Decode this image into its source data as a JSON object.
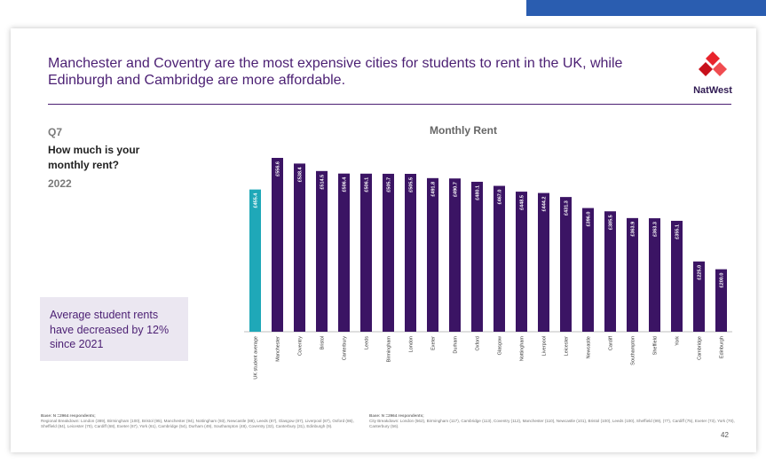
{
  "header": {
    "headline": "Manchester and Coventry are the most expensive cities for students to rent in the UK, while Edinburgh and Cambridge are more affordable.",
    "brand": "NatWest"
  },
  "question": {
    "number": "Q7",
    "text": "How much is your monthly rent?",
    "year": "2022"
  },
  "callout": "Average student rents have decreased by 12% since 2021",
  "footnotes": {
    "left_heading": "Base: N =2964 respondents;",
    "left_body": "Regional Breakdown: London (389), Birmingham (100), Bristol (95), Manchester (94), Nottingham (93), Newcastle (88), Leeds (87), Glasgow (87), Liverpool (87), Oxford (86), Sheffield (84), Leicester (70), Cardiff (68), Exeter (67), York (61), Cambridge (54), Durham (49), Southampton (48), Coventry (32), Canterbury (31), Edinburgh (9).",
    "right_heading": "Base: N =2964 respondents;",
    "right_body": "City Breakdown: London (562), Birmingham (117), Cambridge (113), Coventry (112), Manchester (110), Newcastle (101), Bristol (100), Leeds (100), Sheffield (99), (77), Cardiff (75), Exeter (73), York (70), Canterbury (56)."
  },
  "page_number": "42",
  "colors": {
    "highlight": "#1fa8b8",
    "bar": "#3b1464",
    "headline": "#4b1f73",
    "brand": "#e8242c"
  },
  "chart_data": {
    "type": "bar",
    "title": "Monthly Rent",
    "categories": [
      "UK student average",
      "Manchester",
      "Coventry",
      "Bristol",
      "Canterbury",
      "Leeds",
      "Birmingham",
      "London",
      "Exeter",
      "Durham",
      "Oxford",
      "Glasgow",
      "Nottingham",
      "Liverpool",
      "Leicester",
      "Newcastle",
      "Cardiff",
      "Southampton",
      "Sheffield",
      "York",
      "Cambridge",
      "Edinburgh"
    ],
    "values": [
      455.4,
      556.6,
      538.4,
      514.5,
      506.4,
      506.1,
      505.7,
      505.5,
      491.8,
      490.7,
      480.1,
      467.0,
      448.5,
      444.2,
      431.3,
      396.0,
      385.5,
      363.9,
      363.3,
      355.1,
      225.0,
      200.0
    ],
    "value_labels": [
      "£455.4",
      "£556.6",
      "£538.4",
      "£514.5",
      "£506.4",
      "£506.1",
      "£505.7",
      "£505.5",
      "£491.8",
      "£490.7",
      "£480.1",
      "£467.0",
      "£448.5",
      "£444.2",
      "£431.3",
      "£396.0",
      "£385.5",
      "£363.9",
      "£363.3",
      "£355.1",
      "£225.0",
      "£200.0"
    ],
    "highlight_index": 0,
    "ylim": [
      0,
      556.6
    ],
    "grid": false,
    "legend": "none"
  }
}
